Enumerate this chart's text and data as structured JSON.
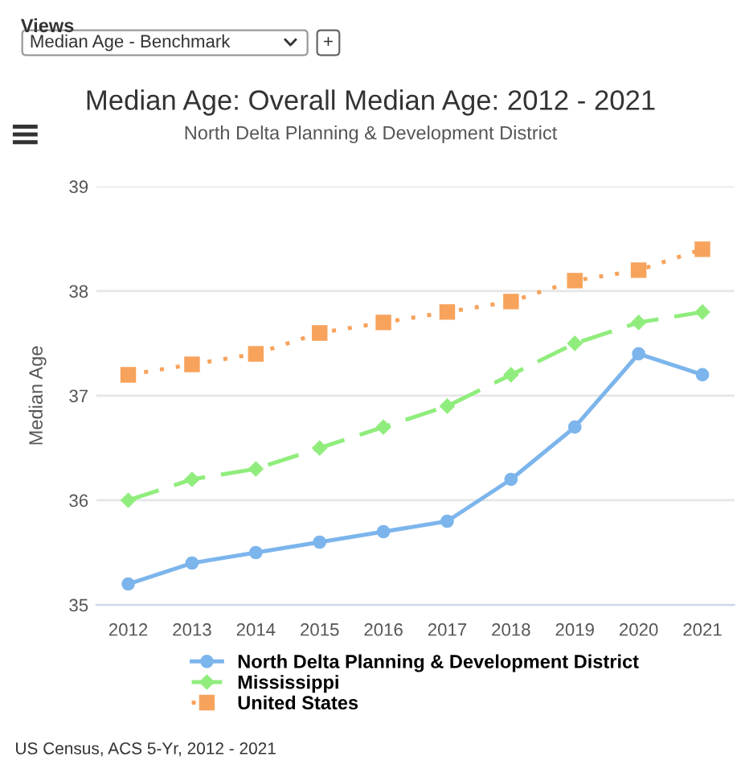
{
  "chart_data": {
    "type": "line",
    "title": "Median Age: Overall Median Age: 2012 - 2021",
    "subtitle": "North Delta Planning & Development District",
    "ylabel": "Median Age",
    "categories": [
      "2012",
      "2013",
      "2014",
      "2015",
      "2016",
      "2017",
      "2018",
      "2019",
      "2020",
      "2021"
    ],
    "series": [
      {
        "name": "North Delta Planning & Development District",
        "color": "#7cb5ec",
        "marker": "circle",
        "line_style": "solid",
        "values": [
          35.2,
          35.4,
          35.5,
          35.6,
          35.7,
          35.8,
          36.2,
          36.7,
          37.4,
          37.2
        ]
      },
      {
        "name": "Mississippi",
        "color": "#90ed7d",
        "marker": "diamond",
        "line_style": "dashed",
        "values": [
          36.0,
          36.2,
          36.3,
          36.5,
          36.7,
          36.9,
          37.2,
          37.5,
          37.7,
          37.8
        ]
      },
      {
        "name": "United States",
        "color": "#f7a35c",
        "marker": "square",
        "line_style": "dotted",
        "values": [
          37.2,
          37.3,
          37.4,
          37.6,
          37.7,
          37.8,
          37.9,
          38.1,
          38.2,
          38.4
        ]
      }
    ],
    "ylim": [
      35,
      39
    ],
    "yticks": [
      35,
      36,
      37,
      38,
      39
    ],
    "grid": "y",
    "legend": "bottom",
    "annotations": [
      "Views",
      "Median Age - Benchmark",
      "+",
      "US Census, ACS 5-Yr, 2012 - 2021"
    ]
  }
}
